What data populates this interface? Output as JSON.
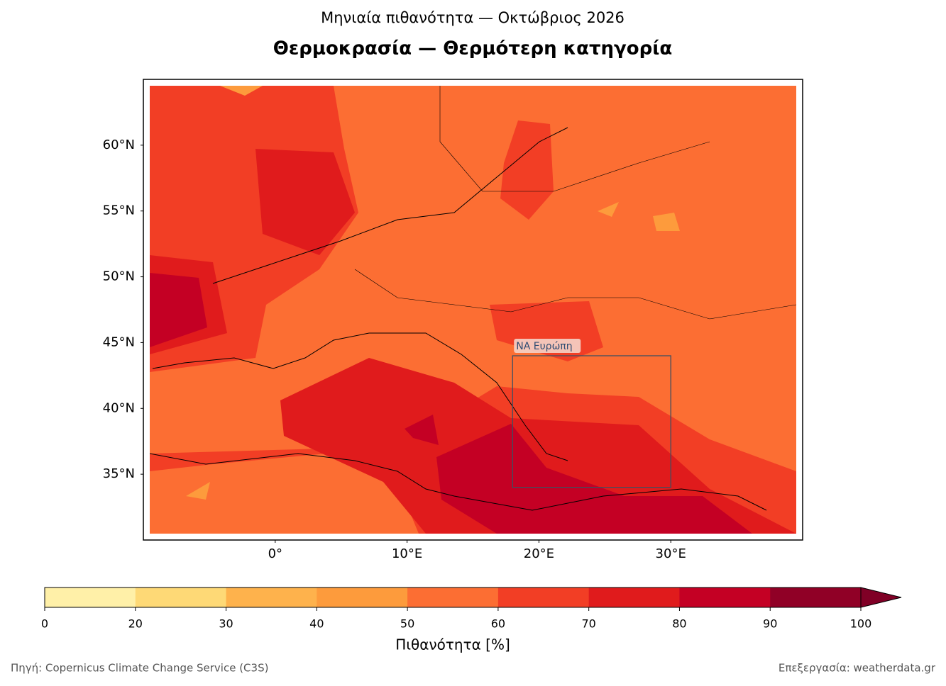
{
  "title": "Μηνιαία πιθανότητα — Οκτώβριος 2026",
  "subtitle": "Θερμοκρασία — Θερμότερη κατηγορία",
  "map": {
    "lonlim": [
      -10,
      40
    ],
    "latlim": [
      30,
      65
    ],
    "lonticks": [
      {
        "value": 0,
        "label": "0°"
      },
      {
        "value": 10,
        "label": "10°E"
      },
      {
        "value": 20,
        "label": "20°E"
      },
      {
        "value": 30,
        "label": "30°E"
      }
    ],
    "latticks": [
      {
        "value": 35,
        "label": "35°N"
      },
      {
        "value": 40,
        "label": "40°N"
      },
      {
        "value": 45,
        "label": "45°N"
      },
      {
        "value": 50,
        "label": "50°N"
      },
      {
        "value": 55,
        "label": "55°N"
      },
      {
        "value": 60,
        "label": "60°N"
      }
    ],
    "region": {
      "label": "ΝΑ Ευρώπη",
      "lon": [
        18,
        30
      ],
      "lat": [
        34,
        44
      ]
    }
  },
  "colorbar": {
    "ticks": [
      0,
      20,
      30,
      40,
      50,
      60,
      70,
      80,
      90,
      100
    ],
    "colors": [
      "#fff0a8",
      "#fed976",
      "#feb24c",
      "#fd9b3c",
      "#fc6e33",
      "#f23e25",
      "#e01b1c",
      "#c40024",
      "#900026"
    ],
    "extend_color": "#800026",
    "label": "Πιθανότητα [%]"
  },
  "footer": {
    "source": "Πηγή: Copernicus Climate Change Service (C3S)",
    "credit": "Επεξεργασία: weatherdata.gr"
  }
}
